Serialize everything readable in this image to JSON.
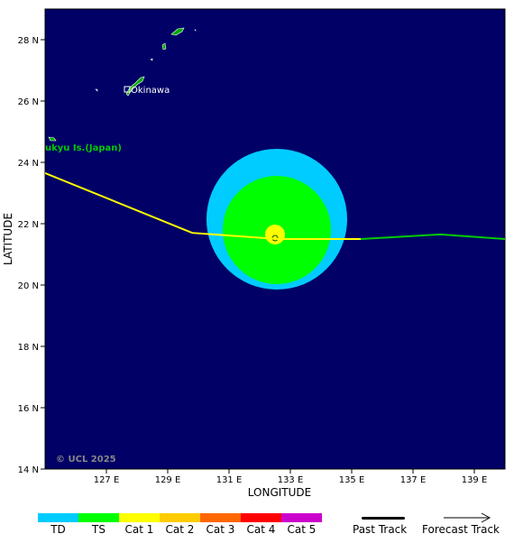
{
  "map": {
    "axis_x_label": "LONGITUDE",
    "axis_y_label": "LATITUDE",
    "lon_ticks": [
      "127 E",
      "129 E",
      "131 E",
      "133 E",
      "135 E",
      "137 E",
      "139 E"
    ],
    "lat_ticks": [
      "14 N",
      "16 N",
      "18 N",
      "20 N",
      "22 N",
      "24 N",
      "26 N",
      "28 N"
    ],
    "lon_range": [
      125,
      140
    ],
    "lat_range": [
      14,
      29
    ],
    "place_labels": {
      "okinawa": "Okinawa",
      "ryukyu": "ukyu Is.(Japan)"
    },
    "copyright": "© UCL 2025",
    "colors": {
      "ocean": "#000066",
      "td_wind_field": "#00ccff",
      "ts_wind_field": "#00ff00",
      "cat1_core": "#ffff00",
      "past_track": "#ffff00",
      "forecast_track": "#00cc00",
      "land": "#00aa00"
    },
    "storm_center": {
      "lon": 132.6,
      "lat": 21.5
    },
    "past_track": [
      {
        "lon": 125.0,
        "lat": 23.65
      },
      {
        "lon": 129.8,
        "lat": 21.7
      },
      {
        "lon": 132.6,
        "lat": 21.5
      },
      {
        "lon": 135.3,
        "lat": 21.5
      }
    ],
    "forecast_track": [
      {
        "lon": 135.3,
        "lat": 21.5
      },
      {
        "lon": 137.9,
        "lat": 21.65
      },
      {
        "lon": 140.0,
        "lat": 21.5
      }
    ]
  },
  "legend": {
    "categories": [
      {
        "label": "TD",
        "color": "#00ccff"
      },
      {
        "label": "TS",
        "color": "#00ff00"
      },
      {
        "label": "Cat 1",
        "color": "#ffff00"
      },
      {
        "label": "Cat 2",
        "color": "#ffcc00"
      },
      {
        "label": "Cat 3",
        "color": "#ff6600"
      },
      {
        "label": "Cat 4",
        "color": "#ff0000"
      },
      {
        "label": "Cat 5",
        "color": "#cc00cc"
      }
    ],
    "past_track_label": "Past Track",
    "forecast_track_label": "Forecast Track"
  }
}
